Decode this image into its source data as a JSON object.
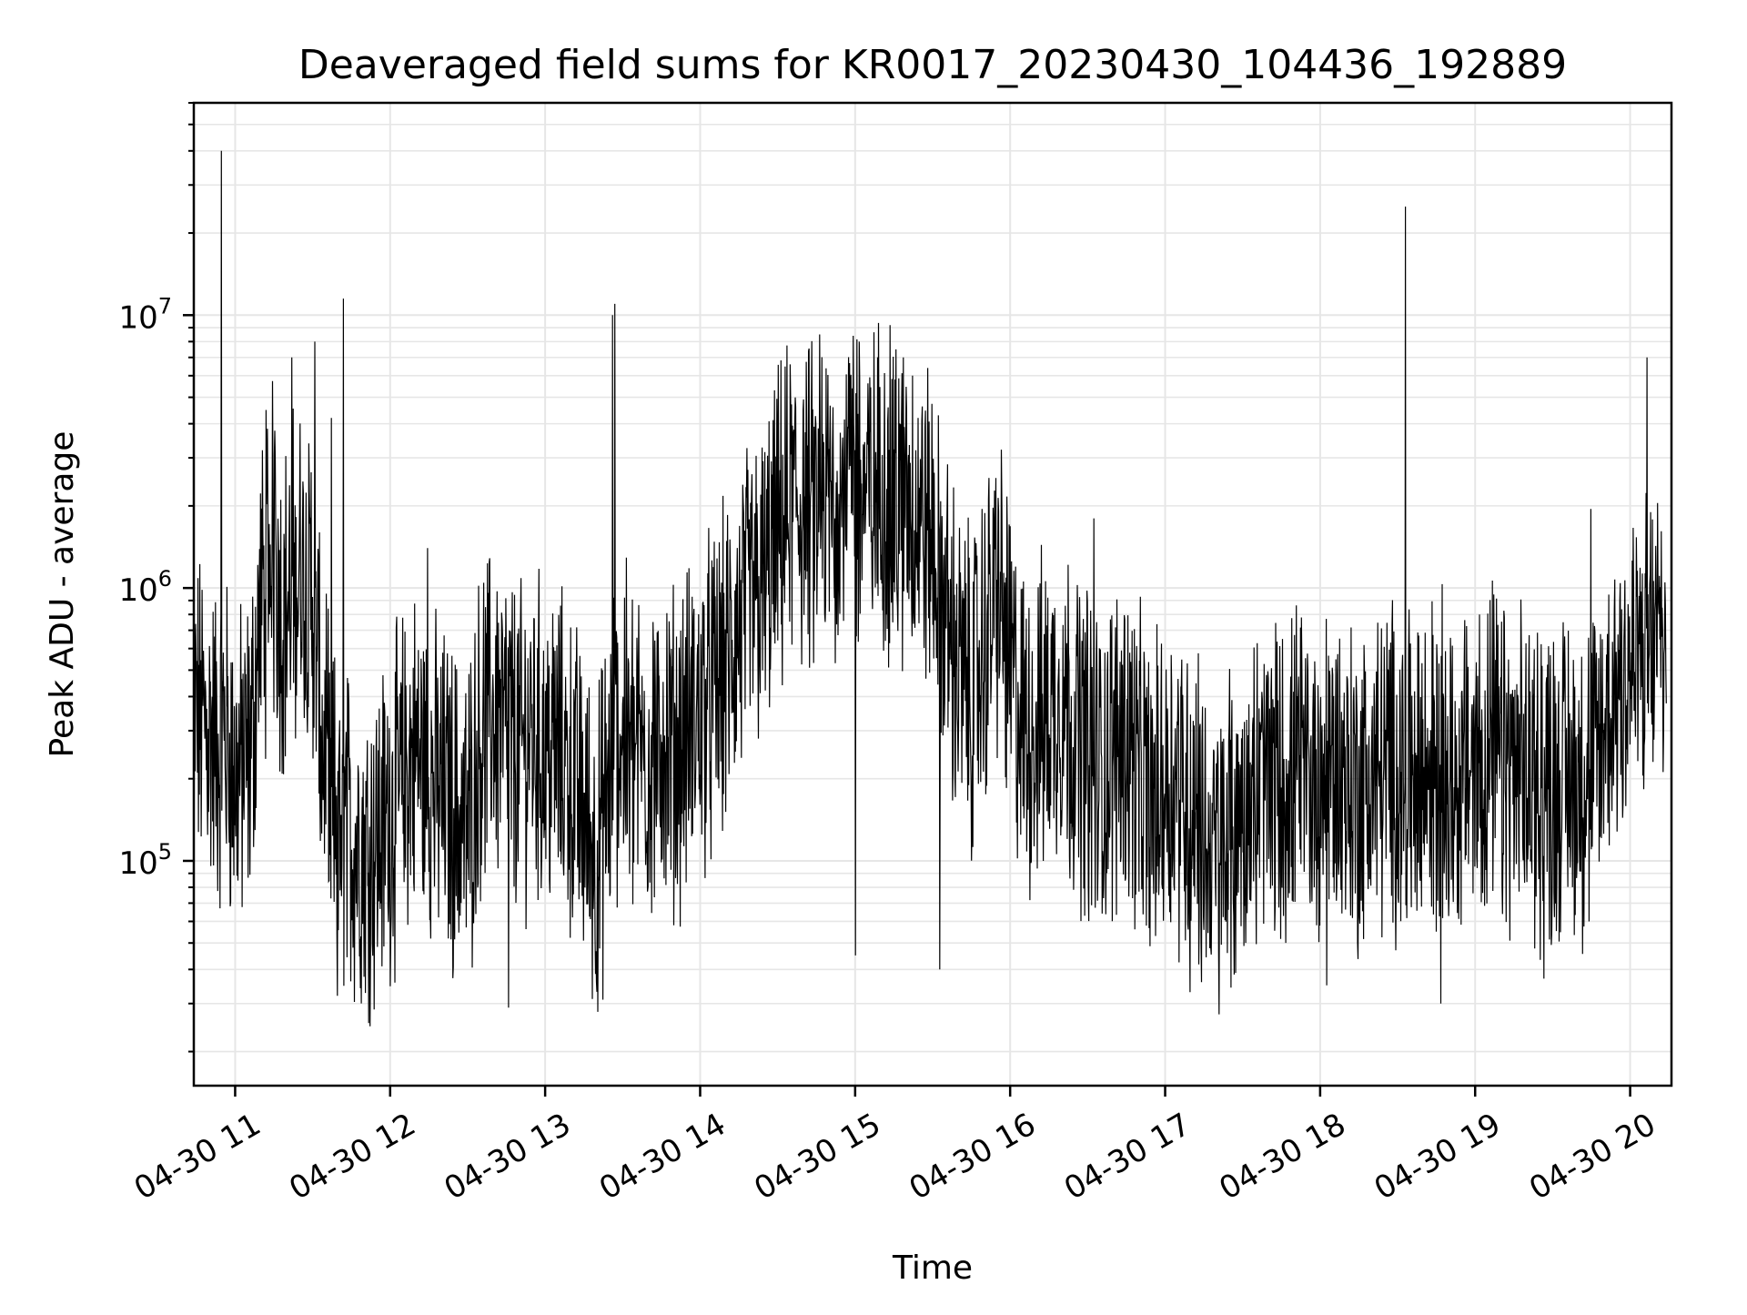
{
  "chart_data": {
    "type": "line",
    "title": "Deaveraged field sums for KR0017_20230430_104436_192889",
    "xlabel": "Time",
    "ylabel": "Peak ADU - average",
    "x_ticks": [
      "04-30 11",
      "04-30 12",
      "04-30 13",
      "04-30 14",
      "04-30 15",
      "04-30 16",
      "04-30 17",
      "04-30 18",
      "04-30 19",
      "04-30 20"
    ],
    "xlim": [
      "2023-04-30 10:44",
      "2023-04-30 20:16"
    ],
    "yscale": "log",
    "ylim": [
      15000,
      60000000
    ],
    "y_ticks": [
      {
        "value": 100000,
        "base": "10",
        "exp": "5"
      },
      {
        "value": 1000000,
        "base": "10",
        "exp": "6"
      },
      {
        "value": 10000000,
        "base": "10",
        "exp": "7"
      }
    ],
    "grid": true,
    "line_color": "#000000",
    "grid_color": "#e6e6e6",
    "series": [
      {
        "x": [
          "10:44",
          "10:50",
          "10:54",
          "10:56",
          "11:00",
          "11:06",
          "11:10",
          "11:15",
          "11:18",
          "11:22",
          "11:26",
          "11:30",
          "11:34",
          "11:38",
          "11:42",
          "11:46",
          "11:50",
          "11:55",
          "12:00",
          "12:05",
          "12:10",
          "12:15",
          "12:20",
          "12:25",
          "12:30",
          "12:35",
          "12:40",
          "12:45",
          "12:50",
          "12:55",
          "13:00",
          "13:05",
          "13:10",
          "13:15",
          "13:20",
          "13:25",
          "13:27",
          "13:30",
          "13:35",
          "13:40",
          "13:45",
          "13:50",
          "13:55",
          "14:00",
          "14:05",
          "14:10",
          "14:15",
          "14:20",
          "14:25",
          "14:30",
          "14:35",
          "14:40",
          "14:45",
          "14:50",
          "14:55",
          "15:00",
          "15:05",
          "15:10",
          "15:15",
          "15:20",
          "15:25",
          "15:30",
          "15:35",
          "15:40",
          "15:45",
          "15:50",
          "15:55",
          "16:00",
          "16:05",
          "16:10",
          "16:15",
          "16:20",
          "16:25",
          "16:30",
          "16:35",
          "16:40",
          "16:45",
          "16:50",
          "16:55",
          "17:00",
          "17:05",
          "17:10",
          "17:15",
          "17:20",
          "17:25",
          "17:30",
          "17:35",
          "17:40",
          "17:45",
          "17:50",
          "17:55",
          "18:00",
          "18:05",
          "18:10",
          "18:15",
          "18:20",
          "18:25",
          "18:30",
          "18:35",
          "18:40",
          "18:45",
          "18:50",
          "18:55",
          "19:00",
          "19:05",
          "19:10",
          "19:15",
          "19:20",
          "19:25",
          "19:30",
          "19:35",
          "19:40",
          "19:45",
          "19:50",
          "19:55",
          "20:00",
          "20:05",
          "20:10",
          "20:14"
        ],
        "y": [
          350000,
          300000,
          250000,
          300000,
          200000,
          250000,
          900000,
          1500000,
          800000,
          1000000,
          1200000,
          900000,
          250000,
          150000,
          130000,
          120000,
          110000,
          120000,
          150000,
          200000,
          250000,
          200000,
          180000,
          150000,
          130000,
          300000,
          350000,
          300000,
          250000,
          300000,
          250000,
          250000,
          200000,
          150000,
          100000,
          200000,
          300000,
          300000,
          250000,
          250000,
          300000,
          250000,
          300000,
          350000,
          400000,
          500000,
          700000,
          900000,
          1000000,
          1500000,
          2000000,
          2000000,
          1800000,
          2000000,
          2500000,
          2500000,
          2000000,
          2500000,
          2000000,
          2000000,
          1800000,
          1500000,
          800000,
          500000,
          400000,
          600000,
          1000000,
          500000,
          300000,
          300000,
          350000,
          400000,
          300000,
          250000,
          200000,
          250000,
          300000,
          200000,
          150000,
          200000,
          200000,
          150000,
          120000,
          100000,
          120000,
          150000,
          180000,
          200000,
          180000,
          200000,
          200000,
          200000,
          220000,
          200000,
          180000,
          200000,
          220000,
          220000,
          200000,
          200000,
          220000,
          200000,
          200000,
          220000,
          250000,
          220000,
          200000,
          200000,
          200000,
          200000,
          200000,
          200000,
          200000,
          300000,
          450000,
          500000,
          550000,
          600000,
          700000
        ]
      }
    ],
    "spikes": [
      {
        "x": "10:55",
        "y": 40000000
      },
      {
        "x": "11:11",
        "y": 3200000
      },
      {
        "x": "11:16",
        "y": 3000000
      },
      {
        "x": "11:22",
        "y": 7000000
      },
      {
        "x": "11:31",
        "y": 8000000
      },
      {
        "x": "11:37",
        "y": 4200000
      },
      {
        "x": "11:42",
        "y": 11500000
      },
      {
        "x": "12:14",
        "y": 1400000
      },
      {
        "x": "13:26",
        "y": 10000000
      },
      {
        "x": "13:27",
        "y": 11000000
      },
      {
        "x": "14:46",
        "y": 8500000
      },
      {
        "x": "15:02",
        "y": 8000000
      },
      {
        "x": "15:14",
        "y": 9200000
      },
      {
        "x": "15:22",
        "y": 6000000
      },
      {
        "x": "16:32",
        "y": 1800000
      },
      {
        "x": "18:33",
        "y": 25000000
      },
      {
        "x": "19:45",
        "y": 1950000
      },
      {
        "x": "20:07",
        "y": 7000000
      },
      {
        "x": "13:43",
        "y": 20000
      },
      {
        "x": "12:46",
        "y": 29000
      },
      {
        "x": "11:40",
        "y": 32000
      },
      {
        "x": "15:00",
        "y": 45000
      },
      {
        "x": "15:33",
        "y": 40000
      },
      {
        "x": "17:10",
        "y": 33000
      },
      {
        "x": "18:03",
        "y": 35000
      },
      {
        "x": "18:47",
        "y": 30000
      },
      {
        "x": "19:27",
        "y": 37000
      }
    ]
  }
}
